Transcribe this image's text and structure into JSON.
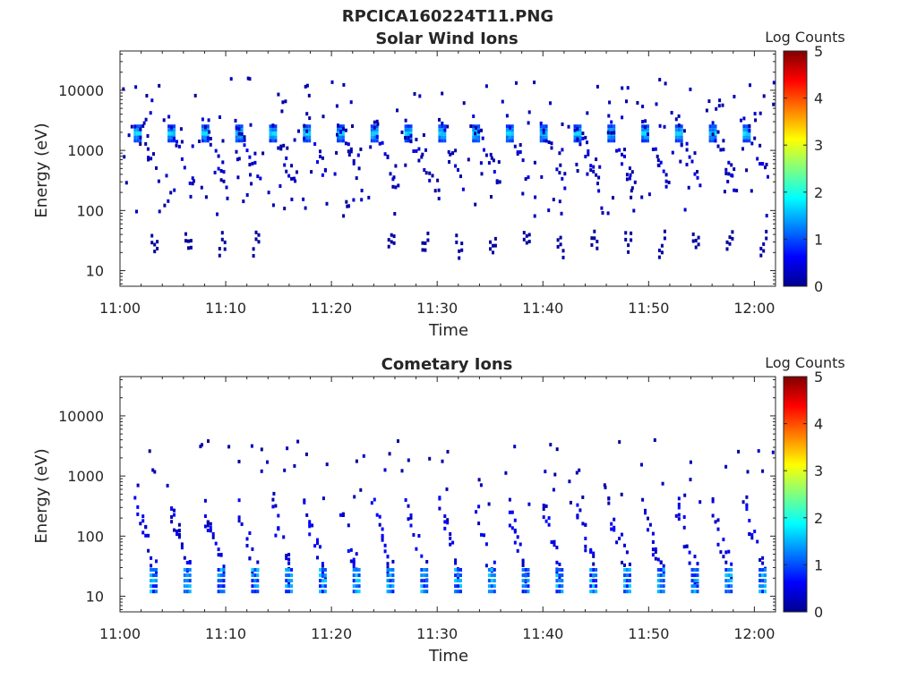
{
  "figure": {
    "title": "RPCICA160224T11.PNG"
  },
  "chart_data": [
    {
      "type": "heatmap",
      "title": "Solar Wind Ions",
      "xlabel": "Time",
      "ylabel": "Energy (eV)",
      "x_range": [
        "11:00",
        "12:02"
      ],
      "x_ticks": [
        "11:00",
        "11:10",
        "11:20",
        "11:30",
        "11:40",
        "11:50",
        "12:00"
      ],
      "y_scale": "log",
      "y_range": [
        5.5,
        45000
      ],
      "y_ticks": [
        10,
        100,
        1000,
        10000
      ],
      "y_tick_labels": [
        "10",
        "100",
        "1000",
        "10000"
      ],
      "grid": false,
      "colorbar": {
        "title": "Log Counts",
        "range": [
          0,
          5
        ],
        "ticks": [
          "0",
          "1",
          "2",
          "3",
          "4",
          "5"
        ],
        "colormap": "jet"
      },
      "sweeps": {
        "period_min": 3.2,
        "first_min": 1.3,
        "count": 19,
        "core_energy_ev": [
          1400,
          2600
        ],
        "core_log_counts": 1.5,
        "low_band_energy_ev": [
          16,
          35
        ]
      }
    },
    {
      "type": "heatmap",
      "title": "Cometary Ions",
      "xlabel": "Time",
      "ylabel": "Energy (eV)",
      "x_range": [
        "11:00",
        "12:02"
      ],
      "x_ticks": [
        "11:00",
        "11:10",
        "11:20",
        "11:30",
        "11:40",
        "11:50",
        "12:00"
      ],
      "y_scale": "log",
      "y_range": [
        5.5,
        45000
      ],
      "y_ticks": [
        10,
        100,
        1000,
        10000
      ],
      "y_tick_labels": [
        "10",
        "100",
        "1000",
        "10000"
      ],
      "grid": false,
      "colorbar": {
        "title": "Log Counts",
        "range": [
          0,
          5
        ],
        "ticks": [
          "0",
          "1",
          "2",
          "3",
          "4",
          "5"
        ],
        "colormap": "jet"
      },
      "sweeps": {
        "period_min": 3.2,
        "first_min": 1.3,
        "count": 19,
        "core_energy_ev": [
          12,
          35
        ],
        "core_log_counts": 1.4,
        "upper_energy_ev": 300
      }
    }
  ]
}
